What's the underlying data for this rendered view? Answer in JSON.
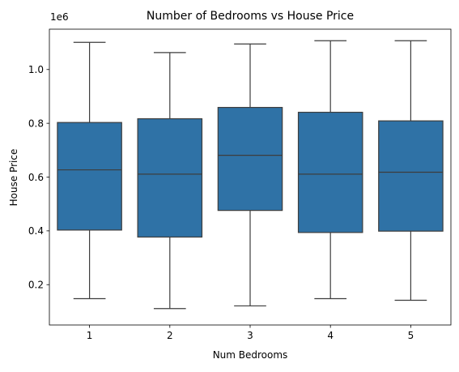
{
  "chart_data": {
    "type": "box",
    "title": "Number of Bedrooms vs House Price",
    "xlabel": "Num Bedrooms",
    "ylabel": "House Price",
    "y_offset_label": "1e6",
    "categories": [
      "1",
      "2",
      "3",
      "4",
      "5"
    ],
    "y_tick_labels": [
      "0.2",
      "0.4",
      "0.6",
      "0.8",
      "1.0"
    ],
    "y_ticks": [
      200000,
      400000,
      600000,
      800000,
      1000000
    ],
    "ylim": [
      50000,
      1150000
    ],
    "box_color": "#2f72a6",
    "line_color": "#3d3d3d",
    "boxes": [
      {
        "category": "1",
        "whisker_low": 148000,
        "q1": 403000,
        "median": 627000,
        "q3": 803000,
        "whisker_high": 1101000
      },
      {
        "category": "2",
        "whisker_low": 111000,
        "q1": 377000,
        "median": 611000,
        "q3": 817000,
        "whisker_high": 1063000
      },
      {
        "category": "3",
        "whisker_low": 121000,
        "q1": 476000,
        "median": 681000,
        "q3": 859000,
        "whisker_high": 1095000
      },
      {
        "category": "4",
        "whisker_low": 148000,
        "q1": 394000,
        "median": 611000,
        "q3": 841000,
        "whisker_high": 1107000
      },
      {
        "category": "5",
        "whisker_low": 142000,
        "q1": 399000,
        "median": 618000,
        "q3": 809000,
        "whisker_high": 1107000
      }
    ]
  }
}
